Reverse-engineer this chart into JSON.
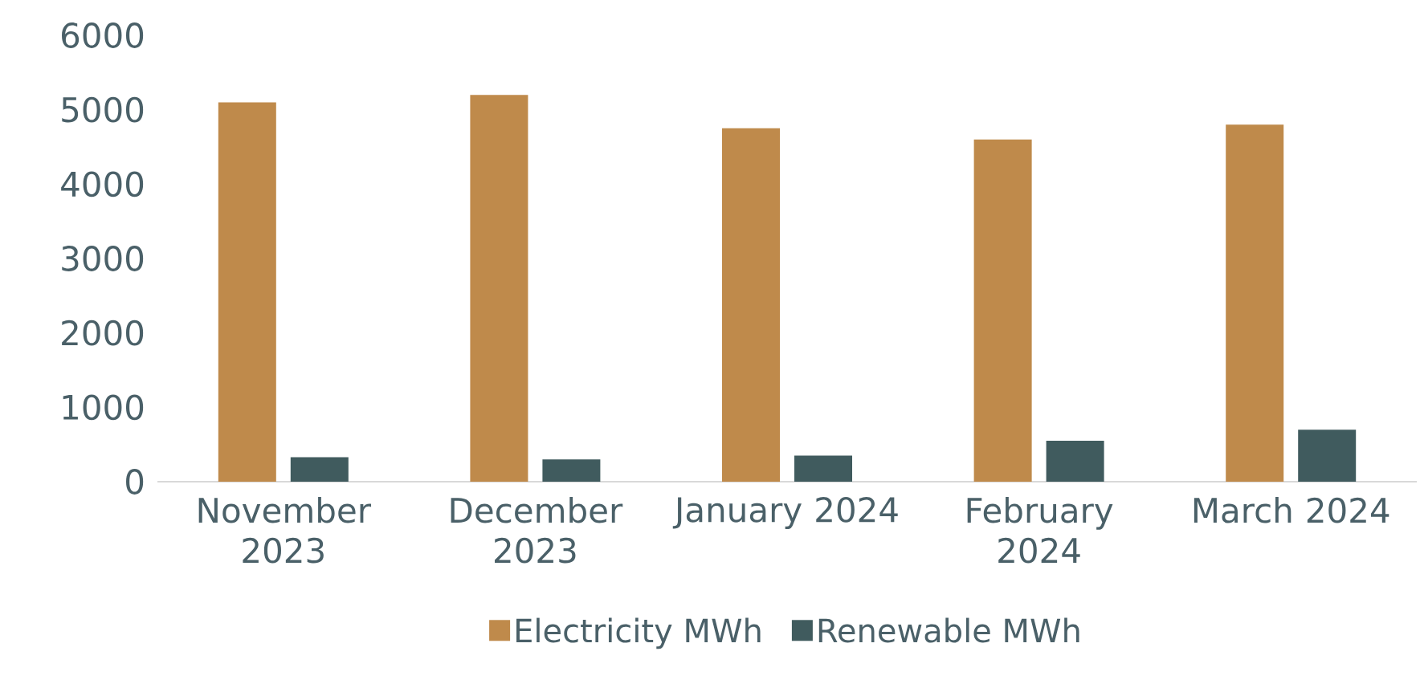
{
  "chart_data": {
    "type": "bar",
    "categories": [
      "November 2023",
      "December 2023",
      "January 2024",
      "February 2024",
      "March 2024"
    ],
    "series": [
      {
        "name": "Electricity MWh",
        "color": "#bf8a4b",
        "values": [
          5100,
          5200,
          4750,
          4600,
          4800
        ]
      },
      {
        "name": "Renewable MWh",
        "color": "#405b5e",
        "values": [
          330,
          300,
          350,
          550,
          700
        ]
      }
    ],
    "ylim": [
      0,
      6000
    ],
    "yticks": [
      0,
      1000,
      2000,
      3000,
      4000,
      5000,
      6000
    ],
    "grid": false,
    "legend": "bottom"
  }
}
